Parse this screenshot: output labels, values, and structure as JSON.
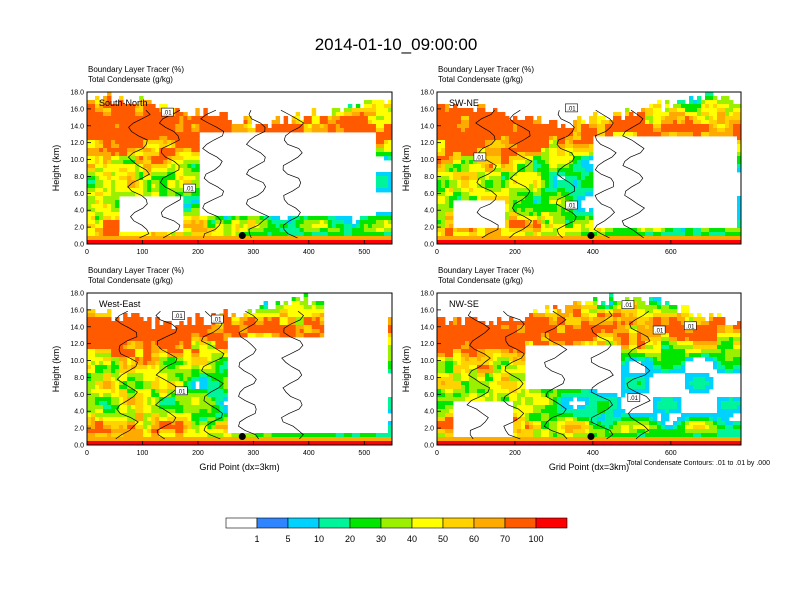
{
  "figure": {
    "title": "2014-01-10_09:00:00",
    "panel_title_1": "Boundary Layer Tracer    (%)",
    "panel_title_2": "Total Condensate    (g/kg)",
    "x_axis_label": "Grid Point (dx=3km)",
    "y_axis_label": "Height (km)",
    "contour_note": "Total Condensate Contours: .01 to .01 by .000"
  },
  "colorbar": {
    "colors": [
      "#ffffff",
      "#2f85ff",
      "#00d2ff",
      "#00f59b",
      "#00e600",
      "#9bf000",
      "#ffff00",
      "#ffd200",
      "#ffaa00",
      "#ff5a00",
      "#ff0000"
    ],
    "labels": [
      "1",
      "5",
      "10",
      "20",
      "30",
      "40",
      "50",
      "60",
      "70",
      "100"
    ]
  },
  "chart_data": [
    {
      "type": "heatmap",
      "panel_label": "South-North",
      "title": "Boundary Layer Tracer (%) / Total Condensate (g/kg)",
      "xlabel": "",
      "ylabel": "Height (km)",
      "xlim": [
        0,
        550
      ],
      "ylim": [
        0,
        18
      ],
      "xticks": [
        0,
        100,
        200,
        300,
        400,
        500
      ],
      "yticks": [
        "0.0",
        "2.0",
        "4.0",
        "6.0",
        "8.0",
        "10.0",
        "12.0",
        "14.0",
        "16.0",
        "18.0"
      ],
      "contour_labels": [
        {
          "text": ".01",
          "x": 145,
          "y": 15.5
        },
        {
          "text": ".01",
          "x": 185,
          "y": 6.5
        }
      ],
      "marker": {
        "x": 280,
        "y": 1.0
      },
      "clear_regions": [
        {
          "x0": 200,
          "x1": 520,
          "y0": 3.5,
          "y1": 13.2
        },
        {
          "x0": 55,
          "x1": 175,
          "y0": 1.3,
          "y1": 5.8
        }
      ]
    },
    {
      "type": "heatmap",
      "panel_label": "SW-NE",
      "title": "Boundary Layer Tracer (%) / Total Condensate (g/kg)",
      "xlabel": "",
      "ylabel": "Height (km)",
      "xlim": [
        0,
        780
      ],
      "ylim": [
        0,
        18
      ],
      "xticks": [
        0,
        200,
        400,
        600
      ],
      "yticks": [
        "0.0",
        "2.0",
        "4.0",
        "6.0",
        "8.0",
        "10.0",
        "12.0",
        "14.0",
        "16.0",
        "18.0"
      ],
      "contour_labels": [
        {
          "text": ".01",
          "x": 345,
          "y": 16.0
        },
        {
          "text": ".01",
          "x": 110,
          "y": 10.2
        },
        {
          "text": ".01",
          "x": 345,
          "y": 4.5
        }
      ],
      "marker": {
        "x": 395,
        "y": 1.0
      },
      "clear_regions": [
        {
          "x0": 400,
          "x1": 770,
          "y0": 2.0,
          "y1": 12.8
        },
        {
          "x0": 40,
          "x1": 170,
          "y0": 1.8,
          "y1": 5.0
        }
      ]
    },
    {
      "type": "heatmap",
      "panel_label": "West-East",
      "title": "Boundary Layer Tracer (%) / Total Condensate (g/kg)",
      "xlabel": "Grid Point (dx=3km)",
      "ylabel": "Height (km)",
      "xlim": [
        0,
        550
      ],
      "ylim": [
        0,
        18
      ],
      "xticks": [
        0,
        100,
        200,
        300,
        400,
        500
      ],
      "yticks": [
        "0.0",
        "2.0",
        "4.0",
        "6.0",
        "8.0",
        "10.0",
        "12.0",
        "14.0",
        "16.0",
        "18.0"
      ],
      "contour_labels": [
        {
          "text": ".01",
          "x": 165,
          "y": 15.2
        },
        {
          "text": ".01",
          "x": 235,
          "y": 14.8
        },
        {
          "text": ".01",
          "x": 170,
          "y": 6.3
        }
      ],
      "marker": {
        "x": 280,
        "y": 1.0
      },
      "clear_regions": [
        {
          "x0": 250,
          "x1": 545,
          "y0": 1.5,
          "y1": 13.0
        },
        {
          "x0": 430,
          "x1": 545,
          "y0": 13.0,
          "y1": 17.5
        }
      ]
    },
    {
      "type": "heatmap",
      "panel_label": "NW-SE",
      "title": "Boundary Layer Tracer (%) / Total Condensate (g/kg)",
      "xlabel": "Grid Point (dx=3km)",
      "ylabel": "Height (km)",
      "xlim": [
        0,
        780
      ],
      "ylim": [
        0,
        18
      ],
      "xticks": [
        0,
        200,
        400,
        600
      ],
      "yticks": [
        "0.0",
        "2.0",
        "4.0",
        "6.0",
        "8.0",
        "10.0",
        "12.0",
        "14.0",
        "16.0",
        "18.0"
      ],
      "contour_labels": [
        {
          "text": ".01",
          "x": 490,
          "y": 16.5
        },
        {
          "text": ".01",
          "x": 570,
          "y": 13.5
        },
        {
          "text": ".01",
          "x": 650,
          "y": 14.0
        },
        {
          "text": ".01",
          "x": 505,
          "y": 5.5
        }
      ],
      "marker": {
        "x": 395,
        "y": 1.0
      },
      "clear_regions": [
        {
          "x0": 230,
          "x1": 470,
          "y0": 6.5,
          "y1": 11.8
        },
        {
          "x0": 40,
          "x1": 200,
          "y0": 1.0,
          "y1": 5.2
        }
      ]
    }
  ]
}
